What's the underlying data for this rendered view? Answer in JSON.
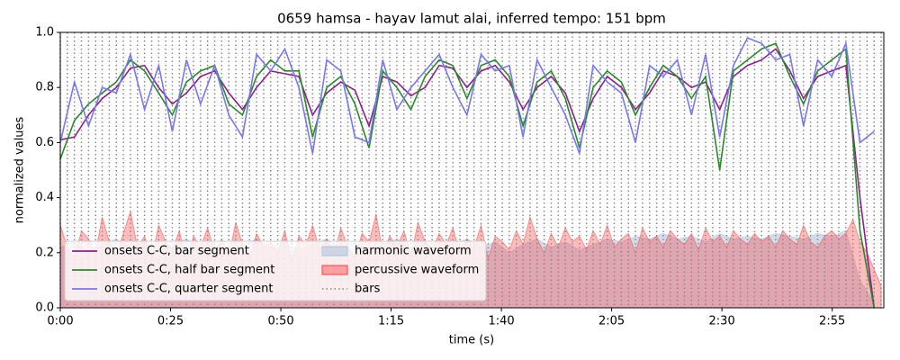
{
  "chart_data": {
    "type": "line",
    "title": "0659 hamsa - hayav lamut alai, inferred tempo: 151 bpm",
    "xlabel": "time (s)",
    "ylabel": "normalized values",
    "xlim": [
      0,
      186.7
    ],
    "ylim": [
      0,
      1
    ],
    "xticks": [
      {
        "value": 0,
        "label": "0:00"
      },
      {
        "value": 25,
        "label": "0:25"
      },
      {
        "value": 50,
        "label": "0:50"
      },
      {
        "value": 75,
        "label": "1:15"
      },
      {
        "value": 100,
        "label": "1:40"
      },
      {
        "value": 125,
        "label": "2:05"
      },
      {
        "value": 150,
        "label": "2:30"
      },
      {
        "value": 175,
        "label": "2:55"
      }
    ],
    "yticks": [
      {
        "value": 0,
        "label": "0.0"
      },
      {
        "value": 0.2,
        "label": "0.2"
      },
      {
        "value": 0.4,
        "label": "0.4"
      },
      {
        "value": 0.6,
        "label": "0.6"
      },
      {
        "value": 0.8,
        "label": "0.8"
      },
      {
        "value": 1,
        "label": "1.0"
      }
    ],
    "legend": "lower left",
    "x": [
      0,
      3.2,
      6.4,
      9.5,
      12.7,
      15.9,
      19.1,
      22.3,
      25.4,
      28.6,
      31.8,
      35.0,
      38.2,
      41.3,
      44.5,
      47.7,
      50.9,
      54.1,
      57.2,
      60.4,
      63.6,
      66.8,
      70.0,
      73.1,
      76.3,
      79.5,
      82.7,
      85.9,
      89.0,
      92.2,
      95.4,
      98.6,
      101.8,
      104.9,
      108.1,
      111.3,
      114.5,
      117.7,
      120.8,
      124.0,
      127.2,
      130.4,
      133.6,
      136.7,
      139.9,
      143.1,
      146.3,
      149.5,
      152.6,
      155.8,
      159.0,
      162.2,
      165.4,
      168.5,
      171.7,
      174.9,
      178.1,
      181.3,
      184.5
    ],
    "bars_name": "bars",
    "bars_color": "#888888",
    "bars": [
      0,
      1.6,
      3.2,
      4.8,
      6.4,
      8.0,
      9.5,
      11.1,
      12.7,
      14.3,
      15.9,
      17.5,
      19.1,
      20.7,
      22.3,
      23.9,
      25.4,
      27.0,
      28.6,
      30.2,
      31.8,
      33.4,
      35.0,
      36.6,
      38.2,
      39.8,
      41.3,
      42.9,
      44.5,
      46.1,
      47.7,
      49.3,
      50.9,
      52.5,
      54.1,
      55.7,
      57.2,
      58.8,
      60.4,
      62.0,
      63.6,
      65.2,
      66.8,
      68.4,
      70.0,
      71.6,
      73.1,
      74.7,
      76.3,
      77.9,
      79.5,
      81.1,
      82.7,
      84.3,
      85.9,
      87.5,
      89.0,
      90.6,
      92.2,
      93.8,
      95.4,
      97.0,
      98.6,
      100.2,
      101.8,
      103.4,
      104.9,
      106.5,
      108.1,
      109.7,
      111.3,
      112.9,
      114.5,
      116.1,
      117.7,
      119.3,
      120.8,
      122.4,
      124.0,
      125.6,
      127.2,
      128.8,
      130.4,
      132.0,
      133.6,
      135.2,
      136.7,
      138.3,
      139.9,
      141.5,
      143.1,
      144.7,
      146.3,
      147.9,
      149.5,
      151.1,
      152.6,
      154.2,
      155.8,
      157.4,
      159.0,
      160.6,
      162.2,
      163.8,
      165.4,
      167.0,
      168.5,
      170.1,
      171.7,
      173.3,
      174.9,
      176.5,
      178.1,
      179.7,
      181.3,
      182.9,
      184.5,
      186.1
    ],
    "series": [
      {
        "name": "onsets C-C, bar segment",
        "color": "#8e1f8e",
        "values": [
          0.61,
          0.62,
          0.7,
          0.76,
          0.8,
          0.87,
          0.88,
          0.8,
          0.74,
          0.78,
          0.84,
          0.86,
          0.78,
          0.72,
          0.8,
          0.86,
          0.85,
          0.84,
          0.7,
          0.78,
          0.82,
          0.79,
          0.66,
          0.84,
          0.82,
          0.77,
          0.8,
          0.88,
          0.87,
          0.8,
          0.86,
          0.88,
          0.82,
          0.72,
          0.8,
          0.84,
          0.78,
          0.64,
          0.76,
          0.84,
          0.8,
          0.72,
          0.78,
          0.86,
          0.84,
          0.8,
          0.82,
          0.72,
          0.84,
          0.88,
          0.9,
          0.94,
          0.86,
          0.76,
          0.84,
          0.86,
          0.88,
          0.4,
          0.0
        ]
      },
      {
        "name": "onsets C-C, half bar segment",
        "color": "#2a8a2a",
        "values": [
          0.54,
          0.68,
          0.74,
          0.78,
          0.82,
          0.9,
          0.86,
          0.78,
          0.7,
          0.82,
          0.86,
          0.88,
          0.74,
          0.7,
          0.84,
          0.9,
          0.86,
          0.86,
          0.62,
          0.8,
          0.84,
          0.74,
          0.58,
          0.86,
          0.8,
          0.72,
          0.84,
          0.9,
          0.88,
          0.76,
          0.88,
          0.9,
          0.84,
          0.66,
          0.82,
          0.86,
          0.76,
          0.58,
          0.8,
          0.86,
          0.82,
          0.7,
          0.8,
          0.88,
          0.84,
          0.76,
          0.84,
          0.5,
          0.86,
          0.9,
          0.94,
          0.96,
          0.84,
          0.74,
          0.86,
          0.9,
          0.94,
          0.28,
          0.0
        ]
      },
      {
        "name": "onsets C-C, quarter segment",
        "color": "#7777f0",
        "values": [
          0.6,
          0.82,
          0.66,
          0.8,
          0.78,
          0.92,
          0.72,
          0.88,
          0.64,
          0.9,
          0.74,
          0.88,
          0.7,
          0.62,
          0.92,
          0.86,
          0.94,
          0.8,
          0.56,
          0.9,
          0.86,
          0.62,
          0.6,
          0.9,
          0.72,
          0.8,
          0.86,
          0.92,
          0.8,
          0.7,
          0.92,
          0.86,
          0.88,
          0.62,
          0.9,
          0.8,
          0.7,
          0.56,
          0.88,
          0.82,
          0.78,
          0.6,
          0.88,
          0.84,
          0.9,
          0.7,
          0.92,
          0.62,
          0.88,
          0.98,
          0.96,
          0.9,
          0.92,
          0.66,
          0.9,
          0.84,
          0.96,
          0.6,
          0.64
        ]
      }
    ],
    "waveforms": [
      {
        "name": "harmonic waveform",
        "color": "#b0c4de",
        "values": [
          0.22,
          0.24,
          0.2,
          0.23,
          0.25,
          0.22,
          0.24,
          0.21,
          0.23,
          0.25,
          0.22,
          0.24,
          0.2,
          0.23,
          0.25,
          0.22,
          0.24,
          0.21,
          0.23,
          0.25,
          0.22,
          0.24,
          0.2,
          0.23,
          0.25,
          0.22,
          0.24,
          0.21,
          0.23,
          0.25,
          0.22,
          0.24,
          0.2,
          0.23,
          0.25,
          0.22,
          0.24,
          0.21,
          0.23,
          0.25,
          0.24,
          0.26,
          0.25,
          0.27,
          0.25,
          0.26,
          0.24,
          0.27,
          0.25,
          0.26,
          0.25,
          0.27,
          0.26,
          0.25,
          0.27,
          0.26,
          0.28,
          0.1,
          0.02
        ]
      },
      {
        "name": "percussive waveform",
        "color": "#ff4040",
        "values": [
          0.3,
          0.22,
          0.18,
          0.28,
          0.25,
          0.2,
          0.33,
          0.24,
          0.19,
          0.27,
          0.35,
          0.22,
          0.26,
          0.18,
          0.3,
          0.24,
          0.21,
          0.28,
          0.16,
          0.26,
          0.22,
          0.29,
          0.2,
          0.25,
          0.19,
          0.31,
          0.23,
          0.18,
          0.27,
          0.22,
          0.24,
          0.2,
          0.28,
          0.17,
          0.26,
          0.23,
          0.3,
          0.21,
          0.25,
          0.19,
          0.29,
          0.22,
          0.18,
          0.27,
          0.24,
          0.34,
          0.2,
          0.26,
          0.22,
          0.28,
          0.19,
          0.31,
          0.24,
          0.21,
          0.27,
          0.23,
          0.29,
          0.2,
          0.25,
          0.22,
          0.3,
          0.18,
          0.26,
          0.24,
          0.21,
          0.28,
          0.23,
          0.33,
          0.25,
          0.2,
          0.27,
          0.22,
          0.29,
          0.24,
          0.26,
          0.21,
          0.28,
          0.23,
          0.3,
          0.22,
          0.25,
          0.27,
          0.2,
          0.29,
          0.24,
          0.26,
          0.22,
          0.28,
          0.25,
          0.23,
          0.27,
          0.21,
          0.29,
          0.24,
          0.26,
          0.22,
          0.28,
          0.25,
          0.23,
          0.27,
          0.24,
          0.26,
          0.22,
          0.28,
          0.25,
          0.23,
          0.3,
          0.24,
          0.22,
          0.26,
          0.28,
          0.25,
          0.27,
          0.32,
          0.24,
          0.2,
          0.14,
          0.08
        ]
      }
    ]
  }
}
